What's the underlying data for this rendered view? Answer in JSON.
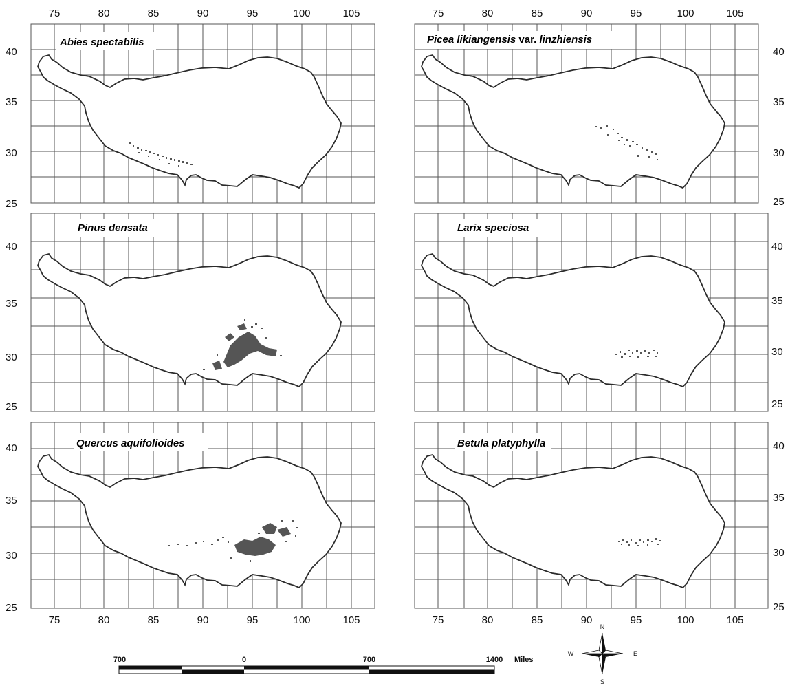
{
  "top_longitudes": [
    "75",
    "80",
    "85",
    "90",
    "95",
    "100",
    "105"
  ],
  "bottom_longitudes": [
    "75",
    "80",
    "85",
    "90",
    "95",
    "100",
    "105"
  ],
  "latitudes": [
    "40",
    "35",
    "30",
    "25"
  ],
  "panels": [
    {
      "species_parts": [
        {
          "text": "Abies spectabilis",
          "italic": true
        }
      ]
    },
    {
      "species_parts": [
        {
          "text": "Picea likiangensis",
          "italic": true
        },
        {
          "text": " var. ",
          "italic": false
        },
        {
          "text": "linzhiensis",
          "italic": true
        }
      ]
    },
    {
      "species_parts": [
        {
          "text": "Pinus densata",
          "italic": true
        }
      ]
    },
    {
      "species_parts": [
        {
          "text": "Larix speciosa",
          "italic": true
        }
      ]
    },
    {
      "species_parts": [
        {
          "text": "Quercus aquifolioides",
          "italic": true
        }
      ]
    },
    {
      "species_parts": [
        {
          "text": "Betula platyphylla",
          "italic": true
        }
      ]
    }
  ],
  "scale_bar": {
    "labels": [
      "700",
      "0",
      "700",
      "1400"
    ],
    "unit": "Miles"
  },
  "compass": {
    "n": "N",
    "s": "S",
    "e": "E",
    "w": "W"
  },
  "colors": {
    "outline": "#2b2b2b",
    "grid": "#555555",
    "distribution": "#555555"
  }
}
